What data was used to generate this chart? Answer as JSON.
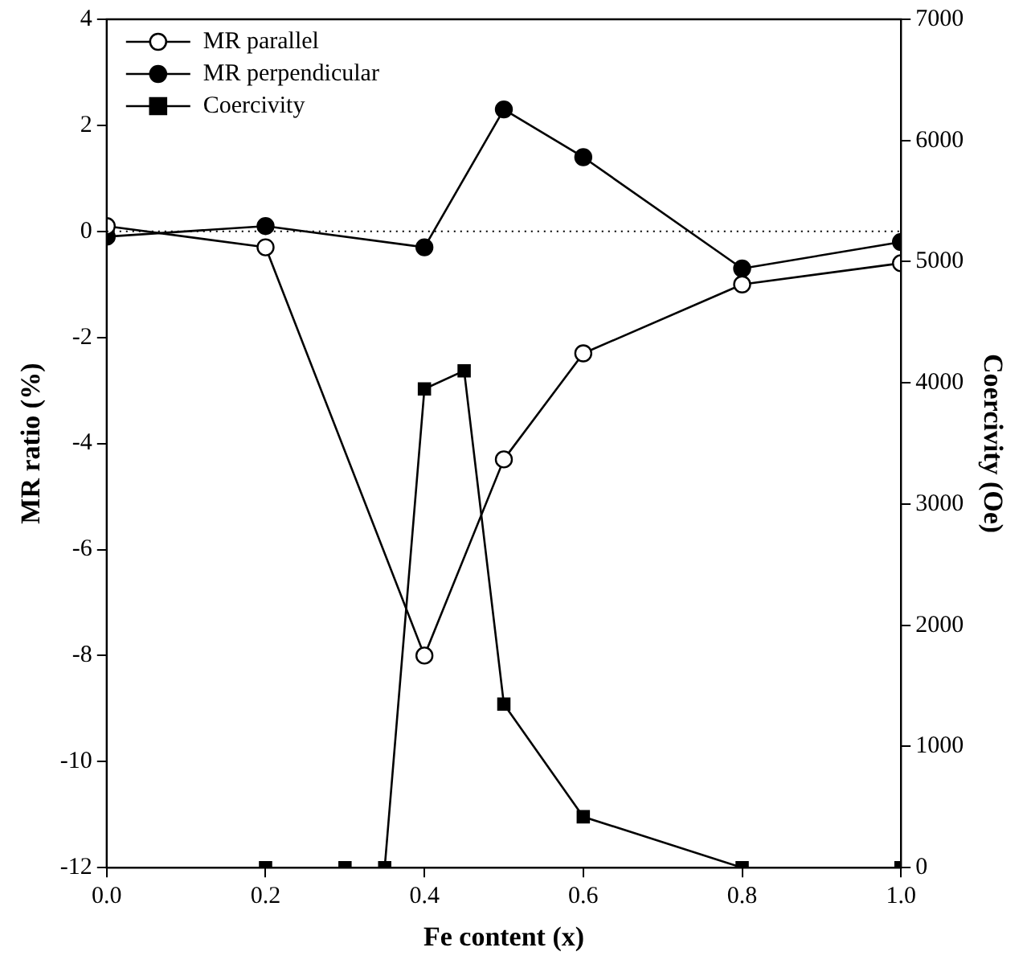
{
  "chart_data": {
    "type": "line",
    "xlabel": "Fe content (x)",
    "ylabel": "MR ratio (%)",
    "y2label": "Coercivity (Oe)",
    "xlim": [
      0,
      1
    ],
    "xticks": [
      {
        "value": 0,
        "label": "0.0"
      },
      0.2,
      0.4,
      0.6,
      0.8,
      {
        "value": 1,
        "label": "1.0"
      }
    ],
    "ylim": [
      -12,
      4
    ],
    "yticks": [
      -12,
      -10,
      -8,
      -6,
      -4,
      -2,
      0,
      2,
      4
    ],
    "y2lim": [
      0,
      7000
    ],
    "y2ticks": [
      0,
      1000,
      2000,
      3000,
      4000,
      5000,
      6000,
      7000
    ],
    "grid": false,
    "legend": "top left",
    "ref_lines": [
      {
        "axis": "y",
        "value": 0,
        "line_style": "dotted",
        "color": "#000000"
      }
    ],
    "series": [
      {
        "name": "MR parallel",
        "color": "#000000",
        "marker": "circle-open",
        "x": [
          0,
          0.2,
          0.4,
          0.5,
          0.6,
          0.8,
          1.0
        ],
        "values": [
          0.1,
          -0.3,
          -8,
          -4.3,
          -2.3,
          -1.0,
          -0.6
        ]
      },
      {
        "name": "MR perpendicular",
        "color": "#000000",
        "marker": "circle",
        "x": [
          0,
          0.2,
          0.4,
          0.5,
          0.6,
          0.8,
          1.0
        ],
        "values": [
          -0.1,
          0.1,
          -0.3,
          2.3,
          1.4,
          -0.7,
          -0.2
        ]
      },
      {
        "name": "Coercivity",
        "color": "#000000",
        "marker": "square",
        "axis": "y2",
        "x": [
          0.2,
          0.3,
          0.35,
          0.4,
          0.45,
          0.5,
          0.6,
          0.8,
          1.0
        ],
        "values": [
          0,
          0,
          0,
          3950,
          4100,
          1350,
          420,
          0,
          0
        ]
      }
    ]
  }
}
